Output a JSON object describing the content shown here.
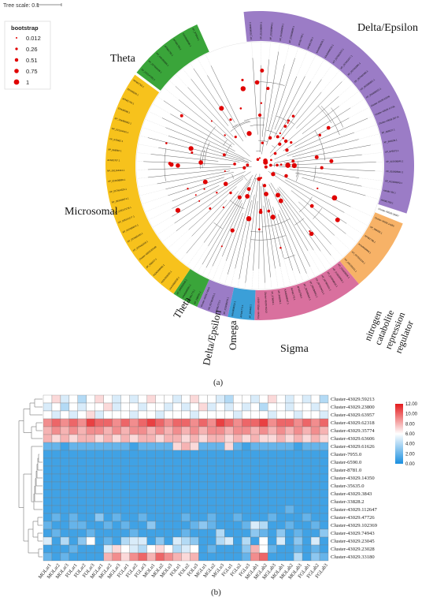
{
  "panel_a": {
    "tree_scale_label": "Tree scale: 0.1",
    "bootstrap_title": "bootstrap",
    "bootstrap_legend": [
      {
        "label": "0.012",
        "value": 0.012
      },
      {
        "label": "0.26",
        "value": 0.26
      },
      {
        "label": "0.51",
        "value": 0.51
      },
      {
        "label": "0.75",
        "value": 0.75
      },
      {
        "label": "1",
        "value": 1
      }
    ],
    "clades": [
      {
        "name": "Delta/Epsilon",
        "color": "#9b7cc6"
      },
      {
        "name": "Theta",
        "color": "#3aa53a"
      },
      {
        "name": "Microsomal",
        "color": "#f7c21c"
      },
      {
        "name": "Theta",
        "color": "#3aa53a"
      },
      {
        "name": "Delta/Epsilon",
        "color": "#9b7cc6"
      },
      {
        "name": "Omega",
        "color": "#3b9fd8"
      },
      {
        "name": "Sigma",
        "color": "#d9709e"
      },
      {
        "name": "nitrogen catabolite repression regulator",
        "color": "#f7b267"
      }
    ],
    "ncr_label_lines": [
      "nitrogen",
      "catabolite",
      "repression",
      "regulator"
    ],
    "leaf_labels": {
      "microsomal": [
        "KAA0668038.1",
        "KAA0668080.1",
        "KAA0668082.1",
        "XP_966517.1",
        "Cluster-43029.83349",
        "XP_057665318.1",
        "XP_057665420.1",
        "XP_050396974.1",
        "XP_035147277.1",
        "XP_035147279.1",
        "XP_050396974.1",
        "XP_057663326.1",
        "XP_015608869.1",
        "NP_001164344.1",
        "AFN81767.1",
        "XP_966862.1",
        "XP_976662.1",
        "NP_001164401.1",
        "XP_034458962.1",
        "EFA08288.1",
        "AFN81764.1",
        "EFA09235.1",
        "AFN81755.1"
      ],
      "delta_top": [
        "XP_015608842.1",
        "XP_015608854.1",
        "XP_015608856.1",
        "XP_015608858.1",
        "XP_015608860.1",
        "AFN81759.1",
        "AFN81760.1",
        "KAA0668028.1",
        "KAA0668030.1",
        "XP_057663372.1",
        "XP_057663377.1",
        "XP_057663381.1",
        "XP_057663385.1",
        "XP_050396901.1",
        "XP_050396922.1",
        "Cluster-43029.61626",
        "Cluster-43029.47726",
        "Cluster-43029.35774",
        "XP_966537.1",
        "XP_966538.1",
        "XP_976572.1",
        "XP_015608840.1",
        "XP_015608841.1",
        "XP_015608843.1",
        "AFN81762.1",
        "AFN81763.1"
      ],
      "theta_top": [
        "XP_035147281.1",
        "XP_057663408.1",
        "XP_050396988.1",
        "AFN81765.1",
        "AFN81766.1",
        "KAA0668066.1",
        "XP_975944.1"
      ],
      "delta_end_cluster": "Cluster-43029.33947",
      "ncr": [
        "Cluster-43029.14350",
        "XP_966555.1",
        "AFN81768.1",
        "KAA0668009.1",
        "XP_057663333.1",
        "XP_050396911.1"
      ],
      "sigma": [
        "XP_015608906.1",
        "XP_015608908.1",
        "XP_015608910.1",
        "XP_057663411.1",
        "XP_057663412.1",
        "XP_050396941.1",
        "XP_050396942.1",
        "AFN81769.1",
        "AFN81770.1",
        "KAA0668047.1",
        "XP_966899.1",
        "XP_976653.1",
        "Cluster-43029.59213",
        "Cluster-43029.63957"
      ],
      "omega": [
        "XP_966680.1",
        "AFN81771.1",
        "KAA0668012.1"
      ],
      "delta_bottom": [
        "XP_015608870.1",
        "AFN81772.1",
        "XP_057663401.1",
        "Cluster-43029.74943"
      ],
      "theta_bottom": [
        "XP_966591.1",
        "AFN81773.1",
        "KAA0668091.1",
        "XP_050396960.1"
      ]
    },
    "caption": "(a)"
  },
  "panel_b": {
    "chart_data": {
      "type": "heatmap",
      "rows": [
        "Cluster-43029.59213",
        "Cluster-43029.23800",
        "Cluster-43029.63957",
        "Cluster-43029.62318",
        "Cluster-43029.35774",
        "Cluster-43029.63606",
        "Cluster-43029.61626",
        "Cluster-7955.0",
        "Cluster-6590.0",
        "Cluster-8781.0",
        "Cluster-43029.14350",
        "Cluster-35635.0",
        "Cluster-43029.3843",
        "Cluster-33828.2",
        "Cluster-43029.112647",
        "Cluster-43029.47726",
        "Cluster-43029.102369",
        "Cluster-43029.74943",
        "Cluster-43029.23045",
        "Cluster-43029.23028",
        "Cluster-43029.33180"
      ],
      "columns": [
        "MOLar1",
        "MOLar2",
        "MOLar3",
        "FOLar1",
        "FOLar2",
        "FOLar3",
        "MGLar1",
        "MGLar2",
        "MGLar3",
        "FGLar1",
        "FGLar2",
        "FGLar3",
        "MOLu1",
        "MOLu2",
        "MOLu3",
        "FOLu1",
        "FOLu2",
        "FOLu3",
        "MGLu1",
        "MGLu2",
        "MGLu3",
        "FGLu1",
        "FGLu2",
        "FGLu3",
        "MGLab1",
        "MGLab2",
        "MGLab3",
        "MOLab1",
        "MOLab2",
        "MOLab3",
        "FGLab1",
        "FGLab2",
        "FGLab3"
      ],
      "values": [
        [
          6,
          7,
          5,
          6,
          4,
          6,
          7,
          6,
          5,
          6,
          5,
          6,
          7,
          6,
          6,
          5,
          6,
          7,
          6,
          6,
          5,
          4,
          6,
          6,
          5,
          6,
          7,
          6,
          5,
          6,
          5,
          6,
          4
        ],
        [
          5,
          6,
          4,
          6,
          5,
          6,
          6,
          7,
          5,
          6,
          6,
          5,
          6,
          6,
          5,
          6,
          5,
          6,
          7,
          5,
          6,
          5,
          6,
          5,
          6,
          4,
          6,
          6,
          5,
          6,
          6,
          5,
          6
        ],
        [
          6,
          5,
          6,
          5,
          6,
          7,
          5,
          6,
          6,
          6,
          5,
          6,
          6,
          5,
          6,
          6,
          6,
          5,
          6,
          6,
          6,
          6,
          5,
          6,
          6,
          6,
          5,
          6,
          6,
          5,
          6,
          6,
          5
        ],
        [
          9,
          10,
          9,
          10,
          9,
          11,
          10,
          10,
          9,
          10,
          9,
          10,
          11,
          10,
          9,
          10,
          10,
          9,
          10,
          9,
          11,
          10,
          9,
          10,
          10,
          11,
          9,
          10,
          10,
          9,
          10,
          9,
          10
        ],
        [
          8,
          9,
          8,
          9,
          8,
          9,
          9,
          8,
          9,
          8,
          9,
          9,
          8,
          9,
          8,
          9,
          8,
          9,
          8,
          9,
          9,
          8,
          9,
          9,
          8,
          9,
          8,
          9,
          8,
          9,
          8,
          9,
          8
        ],
        [
          8,
          7,
          8,
          7,
          8,
          8,
          7,
          8,
          7,
          8,
          7,
          8,
          8,
          7,
          8,
          8,
          7,
          8,
          7,
          8,
          8,
          7,
          8,
          7,
          8,
          7,
          7,
          8,
          7,
          8,
          7,
          8,
          7
        ],
        [
          2,
          2,
          1,
          2,
          2,
          2,
          2,
          2,
          2,
          2,
          1,
          2,
          2,
          2,
          2,
          7,
          8,
          7,
          2,
          2,
          2,
          7,
          2,
          1,
          2,
          2,
          2,
          2,
          2,
          1,
          2,
          2,
          2
        ],
        [
          1,
          1,
          1,
          1,
          1,
          1,
          1,
          1,
          1,
          1,
          1,
          1,
          1,
          1,
          1,
          1,
          1,
          1,
          1,
          1,
          1,
          1,
          1,
          1,
          1,
          1,
          1,
          1,
          1,
          1,
          1,
          1,
          1
        ],
        [
          1,
          1,
          1,
          1,
          1,
          1,
          1,
          1,
          1,
          1,
          1,
          1,
          1,
          1,
          1,
          1,
          1,
          1,
          1,
          1,
          1,
          1,
          1,
          1,
          1,
          1,
          1,
          1,
          1,
          1,
          1,
          1,
          1
        ],
        [
          1,
          1,
          1,
          1,
          1,
          1,
          1,
          1,
          1,
          1,
          1,
          1,
          1,
          1,
          1,
          1,
          1,
          1,
          1,
          1,
          1,
          1,
          1,
          1,
          1,
          1,
          1,
          1,
          1,
          1,
          1,
          1,
          1
        ],
        [
          1,
          1,
          1,
          1,
          1,
          1,
          1,
          1,
          1,
          1,
          1,
          1,
          1,
          1,
          1,
          1,
          1,
          1,
          1,
          1,
          1,
          1,
          1,
          1,
          1,
          1,
          1,
          1,
          1,
          1,
          1,
          1,
          1
        ],
        [
          1,
          1,
          1,
          1,
          1,
          1,
          1,
          1,
          1,
          1,
          1,
          1,
          1,
          1,
          1,
          1,
          1,
          1,
          1,
          1,
          1,
          1,
          1,
          1,
          1,
          1,
          1,
          1,
          1,
          1,
          1,
          1,
          1
        ],
        [
          1,
          1,
          1,
          1,
          1,
          1,
          1,
          1,
          1,
          1,
          1,
          1,
          1,
          1,
          1,
          1,
          1,
          1,
          1,
          1,
          1,
          1,
          1,
          1,
          1,
          1,
          1,
          1,
          1,
          1,
          1,
          1,
          1
        ],
        [
          1,
          1,
          1,
          1,
          1,
          1,
          1,
          1,
          1,
          1,
          1,
          1,
          1,
          1,
          1,
          1,
          1,
          1,
          1,
          1,
          1,
          1,
          1,
          1,
          1,
          1,
          1,
          1,
          1,
          1,
          1,
          1,
          1
        ],
        [
          1,
          1,
          1,
          1,
          1,
          1,
          1,
          1,
          1,
          1,
          1,
          1,
          1,
          1,
          1,
          1,
          1,
          1,
          1,
          1,
          1,
          1,
          1,
          1,
          1,
          1,
          1,
          1,
          2,
          1,
          1,
          1,
          1
        ],
        [
          1,
          2,
          1,
          2,
          1,
          1,
          3,
          1,
          2,
          1,
          1,
          2,
          1,
          1,
          1,
          1,
          2,
          1,
          1,
          2,
          1,
          1,
          2,
          1,
          1,
          1,
          2,
          1,
          1,
          1,
          2,
          1,
          1
        ],
        [
          2,
          1,
          1,
          2,
          2,
          1,
          1,
          2,
          1,
          2,
          1,
          1,
          3,
          1,
          1,
          1,
          1,
          2,
          3,
          2,
          1,
          1,
          1,
          2,
          5,
          4,
          1,
          1,
          2,
          1,
          1,
          2,
          1
        ],
        [
          1,
          2,
          1,
          1,
          1,
          2,
          1,
          1,
          1,
          1,
          2,
          1,
          1,
          1,
          1,
          1,
          2,
          1,
          1,
          1,
          4,
          1,
          1,
          1,
          3,
          2,
          1,
          3,
          1,
          2,
          1,
          1,
          3
        ],
        [
          5,
          1,
          4,
          1,
          3,
          6,
          1,
          2,
          1,
          4,
          5,
          5,
          1,
          3,
          1,
          5,
          4,
          3,
          1,
          1,
          4,
          5,
          1,
          4,
          1,
          6,
          1,
          5,
          1,
          3,
          1,
          5,
          1
        ],
        [
          1,
          1,
          1,
          2,
          1,
          1,
          1,
          5,
          7,
          6,
          5,
          4,
          6,
          7,
          6,
          4,
          5,
          6,
          1,
          2,
          1,
          1,
          1,
          3,
          8,
          6,
          2,
          1,
          1,
          2,
          1,
          2,
          1
        ],
        [
          2,
          1,
          2,
          1,
          1,
          1,
          1,
          8,
          9,
          7,
          9,
          10,
          8,
          10,
          9,
          8,
          7,
          8,
          1,
          1,
          1,
          1,
          1,
          2,
          9,
          10,
          1,
          1,
          1,
          4,
          1,
          3,
          2
        ]
      ],
      "color_scale": {
        "min": 0,
        "max": 12,
        "low_color": "#1a8fe0",
        "mid_color": "#ffffff",
        "high_color": "#e41a1c"
      },
      "colorbar_ticks": [
        "12.00",
        "10.00",
        "8.00",
        "6.00",
        "4.00",
        "2.00",
        "0.00"
      ],
      "dendrogram_side": "left"
    },
    "caption": "(b)"
  }
}
